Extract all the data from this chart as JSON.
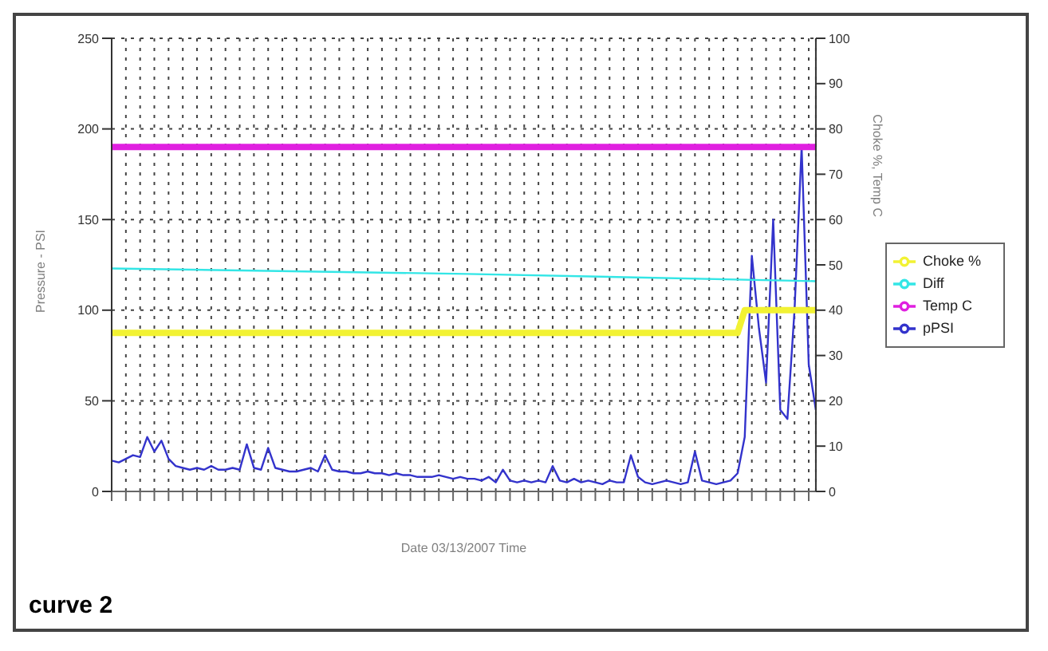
{
  "chart_data": {
    "type": "line",
    "xlabel": "Date 03/13/2007 Time",
    "ylabel": "Pressure - PSI",
    "y2label": "Choke %, Temp C",
    "annotations": [
      "curve 2"
    ],
    "categories": [
      null,
      null,
      null,
      null,
      null,
      null,
      null,
      null,
      null,
      null,
      null,
      null,
      null,
      null,
      null,
      null,
      null,
      null,
      null,
      null,
      null,
      null,
      null,
      null,
      null,
      null,
      null,
      null,
      null,
      null,
      null,
      null,
      null,
      null,
      null,
      null,
      null,
      null,
      null,
      null,
      null,
      null,
      null,
      null,
      null,
      null,
      null,
      null,
      null,
      null,
      null,
      null,
      null,
      null,
      null,
      null,
      null,
      null,
      null,
      null,
      null,
      null,
      null,
      null,
      null,
      null,
      null,
      null,
      null,
      null,
      null,
      null,
      null,
      null,
      null,
      null,
      null,
      null,
      null,
      null,
      null,
      null,
      null,
      null,
      null,
      null,
      null,
      null,
      null,
      null,
      null,
      null,
      null,
      null,
      null,
      null,
      null,
      null,
      null,
      null
    ],
    "series": [
      {
        "name": "pPSI",
        "color": "#3333cc",
        "values": [
          17,
          16,
          18,
          20,
          19,
          30,
          22,
          28,
          18,
          14,
          13,
          12,
          13,
          12,
          14,
          12,
          12,
          13,
          12,
          26,
          13,
          12,
          24,
          13,
          12,
          11,
          11,
          12,
          13,
          11,
          20,
          12,
          11,
          11,
          10,
          10,
          11,
          10,
          10,
          9,
          10,
          9,
          9,
          8,
          8,
          8,
          9,
          8,
          7,
          8,
          7,
          7,
          6,
          8,
          5,
          12,
          6,
          5,
          6,
          5,
          6,
          5,
          14,
          6,
          5,
          7,
          5,
          6,
          5,
          4,
          6,
          5,
          5,
          20,
          8,
          5,
          4,
          5,
          6,
          5,
          4,
          5,
          22,
          6,
          5,
          4,
          5,
          6,
          10,
          30,
          130,
          90,
          60,
          150,
          45,
          40,
          100,
          190,
          70,
          45
        ]
      },
      {
        "name": "Diff",
        "color": "#33e6e6",
        "values": [
          123,
          null,
          null,
          null,
          null,
          null,
          null,
          null,
          null,
          null,
          null,
          null,
          null,
          null,
          null,
          null,
          null,
          null,
          null,
          null,
          null,
          null,
          null,
          null,
          null,
          null,
          null,
          null,
          null,
          null,
          null,
          null,
          null,
          null,
          null,
          null,
          null,
          null,
          null,
          null,
          null,
          null,
          null,
          null,
          null,
          null,
          null,
          null,
          null,
          null,
          120,
          null,
          null,
          null,
          null,
          null,
          null,
          null,
          null,
          null,
          null,
          null,
          null,
          null,
          null,
          null,
          null,
          null,
          null,
          null,
          null,
          null,
          null,
          null,
          null,
          null,
          null,
          null,
          null,
          null,
          null,
          null,
          null,
          null,
          null,
          null,
          null,
          null,
          null,
          null,
          null,
          null,
          null,
          null,
          null,
          null,
          null,
          null,
          null,
          116
        ]
      },
      {
        "name": "Choke %",
        "color": "#f2f233",
        "axis": "y2",
        "values": [
          35,
          null,
          null,
          null,
          null,
          null,
          null,
          null,
          null,
          null,
          null,
          null,
          null,
          null,
          null,
          null,
          null,
          null,
          null,
          null,
          null,
          null,
          null,
          null,
          null,
          null,
          null,
          null,
          null,
          null,
          null,
          null,
          null,
          null,
          null,
          null,
          null,
          null,
          null,
          null,
          null,
          null,
          null,
          null,
          null,
          null,
          null,
          null,
          null,
          null,
          null,
          null,
          null,
          null,
          null,
          null,
          null,
          null,
          null,
          null,
          null,
          null,
          null,
          null,
          null,
          null,
          null,
          null,
          null,
          null,
          null,
          null,
          null,
          null,
          null,
          null,
          null,
          null,
          null,
          null,
          null,
          null,
          null,
          null,
          null,
          null,
          null,
          null,
          35,
          40,
          null,
          null,
          null,
          null,
          null,
          null,
          null,
          null,
          null,
          40
        ]
      },
      {
        "name": "Temp C",
        "color": "#e020e0",
        "axis": "y2",
        "values": [
          76,
          null,
          null,
          null,
          null,
          null,
          null,
          null,
          null,
          null,
          null,
          null,
          null,
          null,
          null,
          null,
          null,
          null,
          null,
          null,
          null,
          null,
          null,
          null,
          null,
          null,
          null,
          null,
          null,
          null,
          null,
          null,
          null,
          null,
          null,
          null,
          null,
          null,
          null,
          null,
          null,
          null,
          null,
          null,
          null,
          null,
          null,
          null,
          null,
          null,
          null,
          null,
          null,
          null,
          null,
          null,
          null,
          null,
          null,
          null,
          null,
          null,
          null,
          null,
          null,
          null,
          null,
          null,
          null,
          null,
          null,
          null,
          null,
          null,
          null,
          null,
          null,
          null,
          null,
          null,
          null,
          null,
          null,
          null,
          null,
          null,
          null,
          null,
          null,
          null,
          null,
          null,
          null,
          null,
          null,
          null,
          null,
          null,
          null,
          76
        ]
      }
    ],
    "ylim": [
      0,
      250
    ],
    "yticks": [
      0,
      50,
      100,
      150,
      200,
      250
    ],
    "y2lim": [
      0,
      100
    ],
    "y2ticks": [
      0,
      10,
      20,
      30,
      40,
      50,
      60,
      70,
      80,
      90,
      100
    ],
    "grid": true,
    "legend": "right",
    "marker": "none",
    "line_style": "solid"
  }
}
